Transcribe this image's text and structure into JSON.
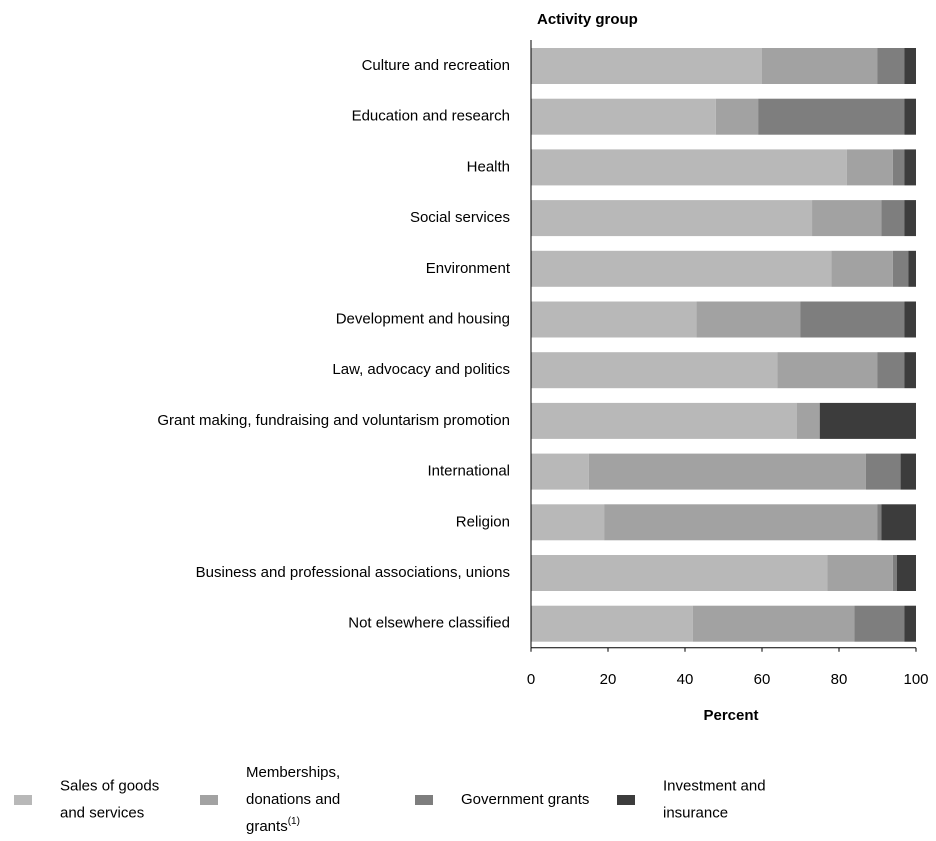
{
  "chart_data": {
    "type": "stacked_bar_horizontal",
    "title": "Activity group",
    "xlabel": "Percent",
    "categories": [
      "Culture and recreation",
      "Education and research",
      "Health",
      "Social services",
      "Environment",
      "Development and housing",
      "Law, advocacy and politics",
      "Grant making, fundraising and voluntarism promotion",
      "International",
      "Religion",
      "Business and professional associations, unions",
      "Not elsewhere classified"
    ],
    "series": [
      {
        "name": "Sales of goods and services",
        "color": "#b8b8b8",
        "values": [
          60,
          48,
          82,
          73,
          78,
          43,
          64,
          69,
          15,
          19,
          77,
          42
        ]
      },
      {
        "name": "Memberships, donations and grants",
        "superscript": "(1)",
        "color": "#a2a2a2",
        "values": [
          30,
          11,
          12,
          18,
          16,
          27,
          26,
          6,
          72,
          71,
          17,
          42
        ]
      },
      {
        "name": "Government grants",
        "color": "#7e7e7e",
        "values": [
          7,
          38,
          3,
          6,
          4,
          27,
          7,
          0,
          9,
          1,
          1,
          13
        ]
      },
      {
        "name": "Investment and insurance",
        "color": "#3c3c3c",
        "values": [
          3,
          3,
          3,
          3,
          2,
          3,
          3,
          25,
          4,
          9,
          5,
          3
        ]
      }
    ],
    "xlim": [
      0,
      100
    ],
    "xticks": [
      0,
      20,
      40,
      60,
      80,
      100
    ]
  }
}
